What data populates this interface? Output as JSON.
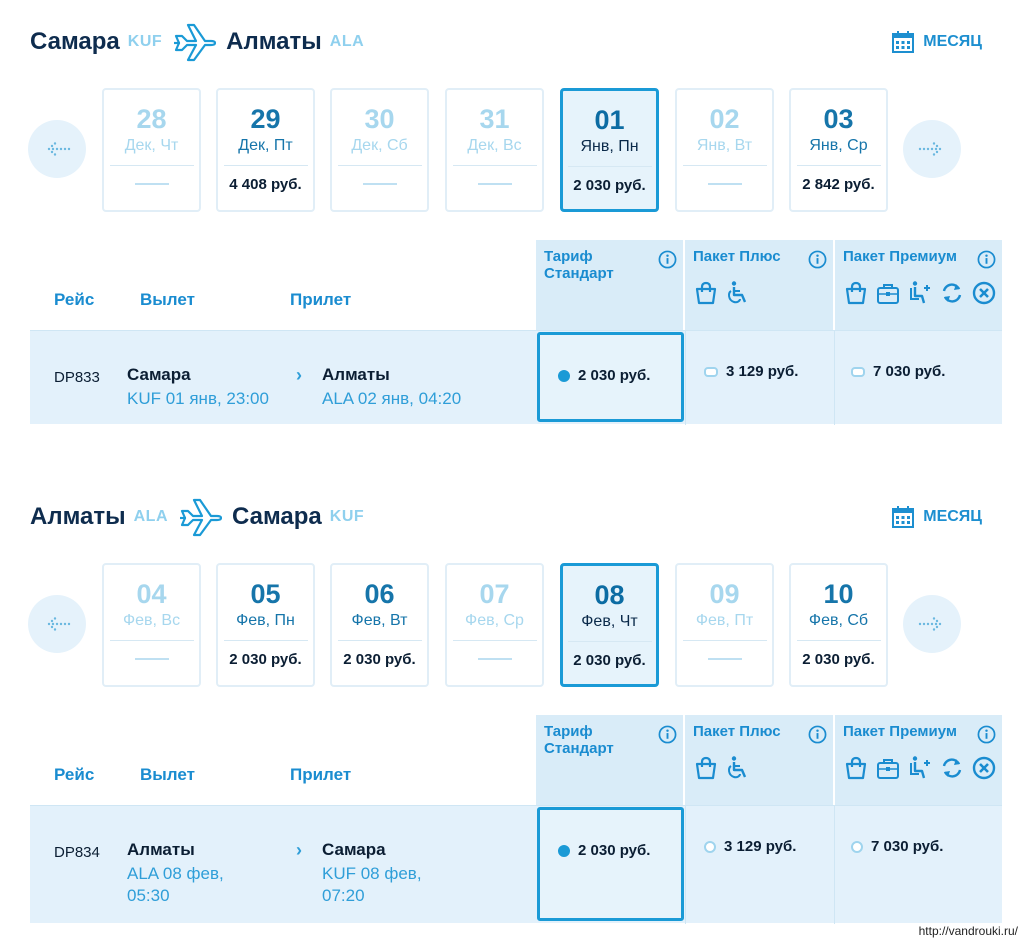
{
  "colors": {
    "accent": "#1a9ad6",
    "dark": "#0e2c4e",
    "light_bg": "#e3f1fb"
  },
  "month_label": "МЕСЯЦ",
  "columns": {
    "flight": "Рейс",
    "departure": "Вылет",
    "arrival": "Прилет"
  },
  "tariffs": {
    "standard": "Тариф Стандарт",
    "plus": "Пакет Плюс",
    "premium": "Пакет Премиум"
  },
  "outbound": {
    "from_city": "Самара",
    "from_code": "KUF",
    "to_city": "Алматы",
    "to_code": "ALA",
    "days": [
      {
        "num": "28",
        "weekday": "Дек, Чт",
        "price": "",
        "state": "inactive"
      },
      {
        "num": "29",
        "weekday": "Дек, Пт",
        "price": "4 408 руб.",
        "state": "active"
      },
      {
        "num": "30",
        "weekday": "Дек, Сб",
        "price": "",
        "state": "inactive"
      },
      {
        "num": "31",
        "weekday": "Дек, Вс",
        "price": "",
        "state": "inactive"
      },
      {
        "num": "01",
        "weekday": "Янв, Пн",
        "price": "2 030 руб.",
        "state": "selected"
      },
      {
        "num": "02",
        "weekday": "Янв, Вт",
        "price": "",
        "state": "inactive"
      },
      {
        "num": "03",
        "weekday": "Янв, Ср",
        "price": "2 842 руб.",
        "state": "active"
      }
    ],
    "flight": {
      "number": "DP833",
      "dep_city": "Самара",
      "dep_info": "KUF 01 янв, 23:00",
      "arr_city": "Алматы",
      "arr_info": "ALA 02 янв, 04:20",
      "price_standard": "2 030 руб.",
      "price_plus": "3 129 руб.",
      "price_premium": "7 030 руб."
    }
  },
  "return": {
    "from_city": "Алматы",
    "from_code": "ALA",
    "to_city": "Самара",
    "to_code": "KUF",
    "days": [
      {
        "num": "04",
        "weekday": "Фев, Вс",
        "price": "",
        "state": "inactive"
      },
      {
        "num": "05",
        "weekday": "Фев, Пн",
        "price": "2 030 руб.",
        "state": "active"
      },
      {
        "num": "06",
        "weekday": "Фев, Вт",
        "price": "2 030 руб.",
        "state": "active"
      },
      {
        "num": "07",
        "weekday": "Фев, Ср",
        "price": "",
        "state": "inactive"
      },
      {
        "num": "08",
        "weekday": "Фев, Чт",
        "price": "2 030 руб.",
        "state": "selected"
      },
      {
        "num": "09",
        "weekday": "Фев, Пт",
        "price": "",
        "state": "inactive"
      },
      {
        "num": "10",
        "weekday": "Фев, Сб",
        "price": "2 030 руб.",
        "state": "active"
      }
    ],
    "flight": {
      "number": "DP834",
      "dep_city": "Алматы",
      "dep_info": "ALA 08 фев, 05:30",
      "arr_city": "Самара",
      "arr_info": "KUF 08 фев, 07:20",
      "price_standard": "2 030 руб.",
      "price_plus": "3 129 руб.",
      "price_premium": "7 030 руб."
    }
  },
  "watermark": "http://vandrouki.ru/"
}
